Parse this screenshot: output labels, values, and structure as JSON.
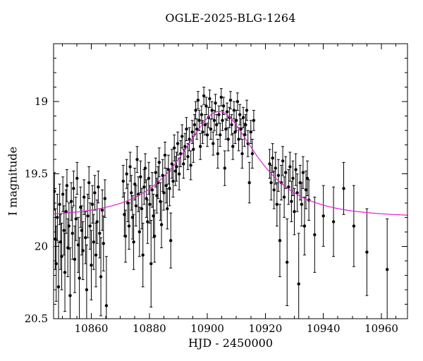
{
  "chart_data": {
    "type": "scatter",
    "title": "OGLE-2025-BLG-1264",
    "xlabel": "HJD - 2450000",
    "ylabel": "I magnitude",
    "xlim": [
      10847,
      10969
    ],
    "ylim_top_to_bottom": [
      18.6,
      20.5
    ],
    "x_major_ticks": [
      10860,
      10880,
      10900,
      10920,
      10940,
      10960
    ],
    "x_minor_step": 5,
    "y_major_ticks": [
      19,
      19.5,
      20,
      20.5
    ],
    "y_minor_step": 0.1,
    "grid": false,
    "legend": "none",
    "frame_color": "#000000",
    "point_color": "#000000",
    "curve_color": "#e020d0",
    "model": {
      "type": "paczynski",
      "t0": 10904,
      "tE": 21,
      "u0": 0.57,
      "baseline_mag": 19.8,
      "sample_step": 0.5
    },
    "points": [
      [
        10847.3,
        19.62,
        0.13
      ],
      [
        10847.6,
        19.95,
        0.21
      ],
      [
        10847.9,
        20.12,
        0.26
      ],
      [
        10848.3,
        19.8,
        0.16
      ],
      [
        10848.7,
        20.28,
        0.31
      ],
      [
        10849.1,
        19.71,
        0.14
      ],
      [
        10849.4,
        19.97,
        0.19
      ],
      [
        10849.8,
        20.07,
        0.23
      ],
      [
        10850.2,
        19.64,
        0.12
      ],
      [
        10850.6,
        19.89,
        0.17
      ],
      [
        10850.9,
        20.18,
        0.27
      ],
      [
        10851.3,
        19.76,
        0.15
      ],
      [
        10851.6,
        19.58,
        0.11
      ],
      [
        10851.9,
        20.01,
        0.2
      ],
      [
        10852.3,
        19.86,
        0.16
      ],
      [
        10852.7,
        20.34,
        0.33
      ],
      [
        10853.1,
        19.69,
        0.13
      ],
      [
        10853.5,
        19.91,
        0.18
      ],
      [
        10853.9,
        19.6,
        0.12
      ],
      [
        10854.3,
        20.09,
        0.23
      ],
      [
        10854.7,
        19.81,
        0.15
      ],
      [
        10855.1,
        19.53,
        0.11
      ],
      [
        10855.5,
        19.99,
        0.19
      ],
      [
        10855.9,
        20.22,
        0.28
      ],
      [
        10856.3,
        19.73,
        0.14
      ],
      [
        10856.7,
        19.89,
        0.17
      ],
      [
        10857.1,
        20.03,
        0.2
      ],
      [
        10857.5,
        19.66,
        0.12
      ],
      [
        10858.0,
        19.94,
        0.18
      ],
      [
        10858.4,
        20.3,
        0.31
      ],
      [
        10858.8,
        19.79,
        0.15
      ],
      [
        10859.2,
        19.56,
        0.11
      ],
      [
        10859.6,
        19.86,
        0.16
      ],
      [
        10860.0,
        20.13,
        0.24
      ],
      [
        10860.4,
        19.71,
        0.13
      ],
      [
        10860.8,
        19.97,
        0.19
      ],
      [
        10861.2,
        19.63,
        0.12
      ],
      [
        10861.6,
        20.06,
        0.22
      ],
      [
        10862.0,
        19.83,
        0.15
      ],
      [
        10862.4,
        19.59,
        0.11
      ],
      [
        10862.9,
        19.91,
        0.17
      ],
      [
        10863.3,
        20.21,
        0.27
      ],
      [
        10863.8,
        19.75,
        0.14
      ],
      [
        10864.2,
        19.98,
        0.19
      ],
      [
        10864.7,
        19.67,
        0.13
      ],
      [
        10865.2,
        20.41,
        0.34
      ],
      [
        10871.0,
        19.55,
        0.11
      ],
      [
        10871.4,
        19.78,
        0.15
      ],
      [
        10871.8,
        19.93,
        0.18
      ],
      [
        10872.2,
        19.5,
        0.1
      ],
      [
        10872.6,
        19.7,
        0.13
      ],
      [
        10873.0,
        19.86,
        0.16
      ],
      [
        10873.4,
        19.45,
        0.1
      ],
      [
        10873.8,
        19.63,
        0.12
      ],
      [
        10874.2,
        19.8,
        0.15
      ],
      [
        10874.6,
        19.97,
        0.19
      ],
      [
        10875.0,
        19.57,
        0.11
      ],
      [
        10875.4,
        19.72,
        0.14
      ],
      [
        10875.8,
        19.4,
        0.09
      ],
      [
        10876.2,
        19.64,
        0.12
      ],
      [
        10876.6,
        19.9,
        0.17
      ],
      [
        10877.0,
        19.52,
        0.11
      ],
      [
        10877.4,
        19.74,
        0.14
      ],
      [
        10877.8,
        20.06,
        0.22
      ],
      [
        10878.2,
        19.59,
        0.12
      ],
      [
        10878.6,
        19.46,
        0.1
      ],
      [
        10879.0,
        19.67,
        0.13
      ],
      [
        10879.4,
        19.83,
        0.15
      ],
      [
        10879.8,
        19.53,
        0.11
      ],
      [
        10880.2,
        19.71,
        0.13
      ],
      [
        10880.6,
        20.12,
        0.3
      ],
      [
        10881.0,
        19.61,
        0.12
      ],
      [
        10881.4,
        19.79,
        0.15
      ],
      [
        10881.8,
        19.93,
        0.18
      ],
      [
        10882.2,
        19.49,
        0.1
      ],
      [
        10882.6,
        19.65,
        0.12
      ],
      [
        10883.0,
        19.56,
        0.11
      ],
      [
        10883.4,
        19.42,
        0.1
      ],
      [
        10883.8,
        19.69,
        0.13
      ],
      [
        10884.2,
        19.85,
        0.16
      ],
      [
        10884.6,
        19.51,
        0.11
      ],
      [
        10885.0,
        19.63,
        0.12
      ],
      [
        10885.4,
        19.37,
        0.09
      ],
      [
        10885.8,
        19.58,
        0.12
      ],
      [
        10886.2,
        19.74,
        0.14
      ],
      [
        10886.6,
        19.47,
        0.1
      ],
      [
        10887.0,
        19.6,
        0.12
      ],
      [
        10887.4,
        19.96,
        0.19
      ],
      [
        10887.8,
        19.43,
        0.1
      ],
      [
        10888.2,
        19.55,
        0.11
      ],
      [
        10888.6,
        19.32,
        0.09
      ],
      [
        10889.0,
        19.48,
        0.1
      ],
      [
        10889.4,
        19.45,
        0.1
      ],
      [
        10889.8,
        19.29,
        0.08
      ],
      [
        10890.3,
        19.5,
        0.11
      ],
      [
        10890.8,
        19.36,
        0.09
      ],
      [
        10891.3,
        19.24,
        0.08
      ],
      [
        10891.8,
        19.43,
        0.1
      ],
      [
        10892.3,
        19.31,
        0.09
      ],
      [
        10892.8,
        19.19,
        0.08
      ],
      [
        10893.3,
        19.38,
        0.09
      ],
      [
        10893.8,
        19.26,
        0.08
      ],
      [
        10894.3,
        19.44,
        0.1
      ],
      [
        10894.8,
        19.21,
        0.08
      ],
      [
        10895.2,
        19.33,
        0.09
      ],
      [
        10895.6,
        19.16,
        0.07
      ],
      [
        10896.0,
        19.06,
        0.06
      ],
      [
        10896.4,
        19.19,
        0.07
      ],
      [
        10896.8,
        18.99,
        0.06
      ],
      [
        10897.2,
        19.13,
        0.07
      ],
      [
        10897.6,
        19.31,
        0.09
      ],
      [
        10898.0,
        19.09,
        0.06
      ],
      [
        10898.4,
        19.21,
        0.08
      ],
      [
        10898.8,
        18.96,
        0.06
      ],
      [
        10899.2,
        19.16,
        0.07
      ],
      [
        10899.6,
        19.03,
        0.06
      ],
      [
        10900.0,
        19.23,
        0.08
      ],
      [
        10900.4,
        19.11,
        0.07
      ],
      [
        10900.8,
        18.98,
        0.06
      ],
      [
        10901.2,
        19.19,
        0.07
      ],
      [
        10901.6,
        19.06,
        0.06
      ],
      [
        10902.0,
        19.29,
        0.08
      ],
      [
        10902.4,
        19.13,
        0.07
      ],
      [
        10902.8,
        19.01,
        0.06
      ],
      [
        10903.2,
        19.16,
        0.07
      ],
      [
        10903.6,
        19.36,
        0.1
      ],
      [
        10904.0,
        19.09,
        0.06
      ],
      [
        10904.4,
        19.23,
        0.08
      ],
      [
        10904.8,
        18.97,
        0.06
      ],
      [
        10905.2,
        19.13,
        0.07
      ],
      [
        10905.6,
        19.03,
        0.06
      ],
      [
        10906.0,
        19.46,
        0.12
      ],
      [
        10906.4,
        19.19,
        0.07
      ],
      [
        10906.8,
        19.07,
        0.06
      ],
      [
        10907.2,
        19.26,
        0.08
      ],
      [
        10907.6,
        19.11,
        0.07
      ],
      [
        10908.0,
        18.99,
        0.06
      ],
      [
        10908.4,
        19.16,
        0.07
      ],
      [
        10908.8,
        19.31,
        0.09
      ],
      [
        10909.2,
        19.06,
        0.06
      ],
      [
        10909.6,
        19.21,
        0.08
      ],
      [
        10910.0,
        19.13,
        0.07
      ],
      [
        10910.4,
        19.0,
        0.06
      ],
      [
        10910.8,
        19.26,
        0.08
      ],
      [
        10911.2,
        19.09,
        0.07
      ],
      [
        10911.6,
        19.19,
        0.07
      ],
      [
        10912.0,
        19.36,
        0.1
      ],
      [
        10912.4,
        19.11,
        0.07
      ],
      [
        10912.8,
        19.23,
        0.08
      ],
      [
        10913.2,
        19.16,
        0.07
      ],
      [
        10913.6,
        19.06,
        0.07
      ],
      [
        10914.0,
        19.29,
        0.09
      ],
      [
        10914.5,
        19.56,
        0.14
      ],
      [
        10915.0,
        19.21,
        0.08
      ],
      [
        10915.5,
        19.36,
        0.1
      ],
      [
        10916.0,
        19.13,
        0.07
      ],
      [
        10921.5,
        19.43,
        0.1
      ],
      [
        10922.0,
        19.56,
        0.12
      ],
      [
        10922.5,
        19.39,
        0.1
      ],
      [
        10923.0,
        19.61,
        0.13
      ],
      [
        10923.5,
        19.46,
        0.11
      ],
      [
        10924.0,
        19.71,
        0.15
      ],
      [
        10924.5,
        19.51,
        0.11
      ],
      [
        10925.0,
        19.96,
        0.25
      ],
      [
        10925.5,
        19.56,
        0.12
      ],
      [
        10926.0,
        19.41,
        0.1
      ],
      [
        10926.5,
        19.66,
        0.14
      ],
      [
        10927.0,
        19.49,
        0.11
      ],
      [
        10927.5,
        20.11,
        0.3
      ],
      [
        10928.0,
        19.59,
        0.12
      ],
      [
        10928.5,
        19.45,
        0.1
      ],
      [
        10929.0,
        19.69,
        0.14
      ],
      [
        10929.5,
        19.53,
        0.12
      ],
      [
        10930.0,
        19.76,
        0.16
      ],
      [
        10930.5,
        19.47,
        0.11
      ],
      [
        10931.0,
        19.63,
        0.13
      ],
      [
        10931.5,
        20.26,
        0.35
      ],
      [
        10932.0,
        19.56,
        0.12
      ],
      [
        10932.5,
        19.71,
        0.15
      ],
      [
        10933.0,
        19.49,
        0.11
      ],
      [
        10933.5,
        19.86,
        0.2
      ],
      [
        10934.0,
        19.61,
        0.13
      ],
      [
        10934.5,
        19.53,
        0.12
      ],
      [
        10935.0,
        19.68,
        0.14
      ],
      [
        10937.0,
        19.92,
        0.26
      ],
      [
        10940.0,
        19.79,
        0.21
      ],
      [
        10943.5,
        19.83,
        0.24
      ],
      [
        10947.0,
        19.6,
        0.18
      ],
      [
        10950.5,
        19.86,
        0.28
      ],
      [
        10955.0,
        20.04,
        0.3
      ],
      [
        10962.0,
        20.16,
        0.35
      ]
    ]
  }
}
